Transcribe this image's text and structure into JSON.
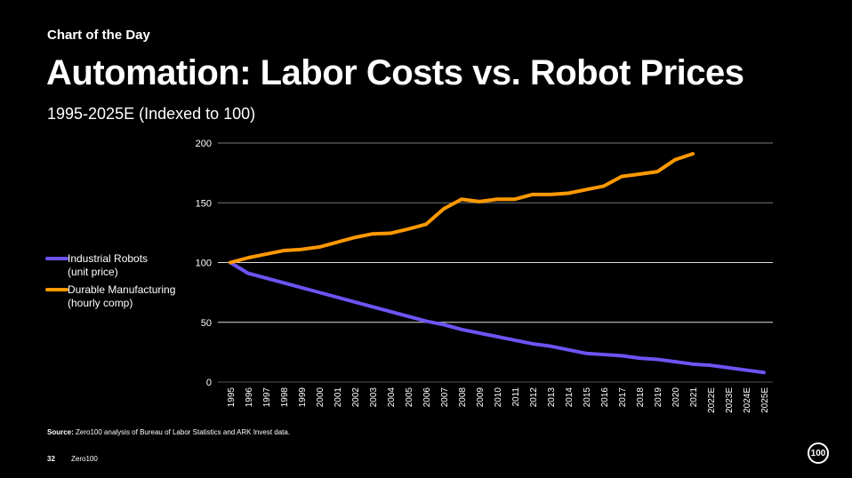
{
  "header": {
    "kicker": "Chart of the Day",
    "title": "Automation: Labor Costs vs. Robot Prices",
    "subtitle": "1995-2025E (Indexed to 100)"
  },
  "footer": {
    "source_label": "Source:",
    "source_text": "Zero100 analysis of Bureau of Labor Statistics and ARK Invest data.",
    "page_number": "32",
    "brand": "Zero100",
    "logo_text": "100"
  },
  "chart_data": {
    "type": "line",
    "title": "",
    "xlabel": "",
    "ylabel": "",
    "ylim": [
      0,
      200
    ],
    "yticks": [
      0,
      50,
      100,
      150,
      200
    ],
    "grid": true,
    "legend_placement": "left",
    "categories": [
      "1995",
      "1996",
      "1997",
      "1998",
      "1999",
      "2000",
      "2001",
      "2002",
      "2003",
      "2004",
      "2005",
      "2006",
      "2007",
      "2008",
      "2009",
      "2010",
      "2011",
      "2012",
      "2013",
      "2014",
      "2015",
      "2016",
      "2017",
      "2018",
      "2019",
      "2020",
      "2021",
      "2022E",
      "2023E",
      "2024E",
      "2025E"
    ],
    "series": [
      {
        "name": "Industrial Robots",
        "name_line2": "(unit price)",
        "color": "#6b55f5",
        "values": [
          100,
          91,
          87,
          83,
          79,
          75,
          71,
          67,
          63,
          59,
          55,
          51,
          48,
          44,
          41,
          38,
          35,
          32,
          30,
          27,
          24,
          23,
          22,
          20,
          19,
          17,
          15,
          14,
          12,
          10,
          8
        ]
      },
      {
        "name": "Durable Manufacturing",
        "name_line2": "(hourly comp)",
        "color": "#ff9900",
        "values": [
          100,
          104,
          107,
          110,
          111,
          113,
          117,
          121,
          124,
          124.5,
          128,
          132,
          145,
          153,
          151,
          153,
          153,
          157,
          157,
          158,
          161,
          164,
          172,
          174,
          176,
          186,
          191,
          null,
          null,
          null,
          null
        ]
      }
    ]
  }
}
